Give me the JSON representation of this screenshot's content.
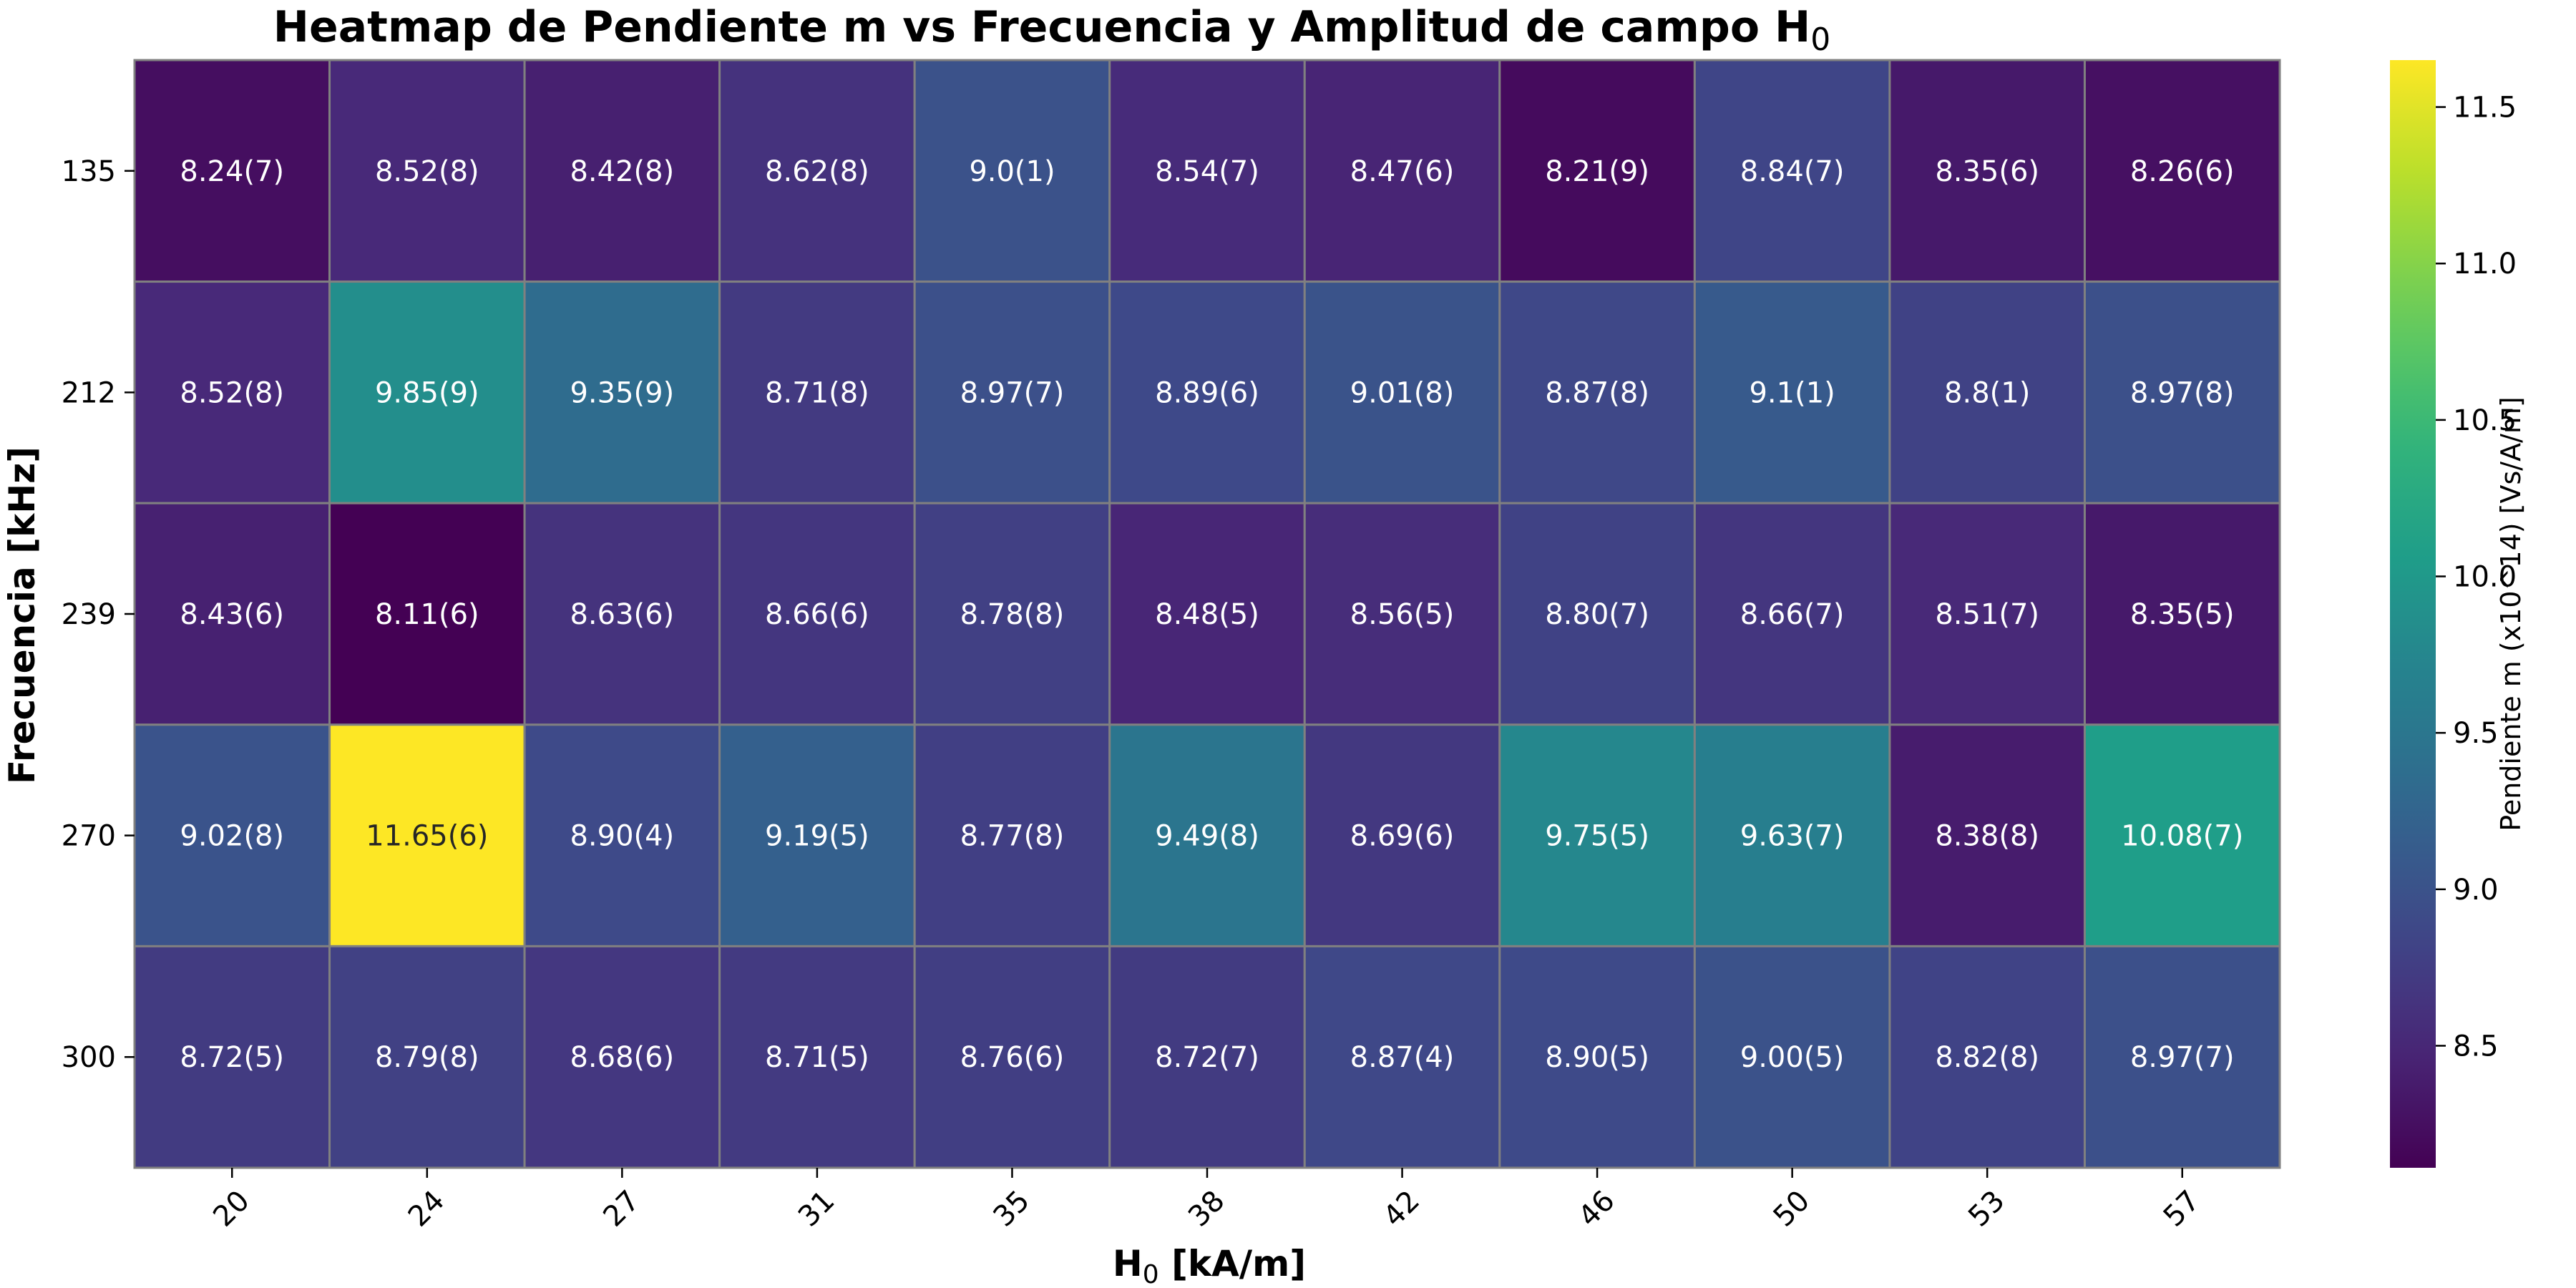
{
  "chart_data": {
    "type": "heatmap",
    "title": {
      "text": "Heatmap de Pendiente m vs Frecuencia y Amplitud de campo H",
      "subscript": "0"
    },
    "xlabel": {
      "symbol": "H",
      "subscript": "0",
      "rest": " [kA/m]"
    },
    "ylabel": "Frecuencia [kHz]",
    "x_categories": [
      "20",
      "24",
      "27",
      "31",
      "35",
      "38",
      "42",
      "46",
      "50",
      "53",
      "57"
    ],
    "y_categories": [
      "135",
      "212",
      "239",
      "270",
      "300"
    ],
    "values": [
      [
        8.24,
        8.52,
        8.42,
        8.62,
        9.0,
        8.54,
        8.47,
        8.21,
        8.84,
        8.35,
        8.26
      ],
      [
        8.52,
        9.85,
        9.35,
        8.71,
        8.97,
        8.89,
        9.01,
        8.87,
        9.1,
        8.8,
        8.97
      ],
      [
        8.43,
        8.11,
        8.63,
        8.66,
        8.78,
        8.48,
        8.56,
        8.8,
        8.66,
        8.51,
        8.35
      ],
      [
        9.02,
        11.65,
        8.9,
        9.19,
        8.77,
        9.49,
        8.69,
        9.75,
        9.63,
        8.38,
        10.08
      ],
      [
        8.72,
        8.79,
        8.68,
        8.71,
        8.76,
        8.72,
        8.87,
        8.9,
        9.0,
        8.82,
        8.97
      ]
    ],
    "annotations": [
      [
        "8.24(7)",
        "8.52(8)",
        "8.42(8)",
        "8.62(8)",
        "9.0(1)",
        "8.54(7)",
        "8.47(6)",
        "8.21(9)",
        "8.84(7)",
        "8.35(6)",
        "8.26(6)"
      ],
      [
        "8.52(8)",
        "9.85(9)",
        "9.35(9)",
        "8.71(8)",
        "8.97(7)",
        "8.89(6)",
        "9.01(8)",
        "8.87(8)",
        "9.1(1)",
        "8.8(1)",
        "8.97(8)"
      ],
      [
        "8.43(6)",
        "8.11(6)",
        "8.63(6)",
        "8.66(6)",
        "8.78(8)",
        "8.48(5)",
        "8.56(5)",
        "8.80(7)",
        "8.66(7)",
        "8.51(7)",
        "8.35(5)"
      ],
      [
        "9.02(8)",
        "11.65(6)",
        "8.90(4)",
        "9.19(5)",
        "8.77(8)",
        "9.49(8)",
        "8.69(6)",
        "9.75(5)",
        "9.63(7)",
        "8.38(8)",
        "10.08(7)"
      ],
      [
        "8.72(5)",
        "8.79(8)",
        "8.68(6)",
        "8.71(5)",
        "8.76(6)",
        "8.72(7)",
        "8.87(4)",
        "8.90(5)",
        "9.00(5)",
        "8.82(8)",
        "8.97(7)"
      ]
    ],
    "colormap": "viridis",
    "vmin": 8.11,
    "vmax": 11.65,
    "colorbar": {
      "label": "Pendiente m (x10^14) [Vs/A/m]",
      "ticks": [
        8.5,
        9.0,
        9.5,
        10.0,
        10.5,
        11.0,
        11.5
      ],
      "tick_labels": [
        "8.5",
        "9.0",
        "9.5",
        "10.0",
        "10.5",
        "11.0",
        "11.5"
      ]
    },
    "cell_border_color": "#808080",
    "annotation_text_colors": {
      "dark_cells": "#ffffff",
      "light_cells": "#262626"
    },
    "grid": false
  }
}
